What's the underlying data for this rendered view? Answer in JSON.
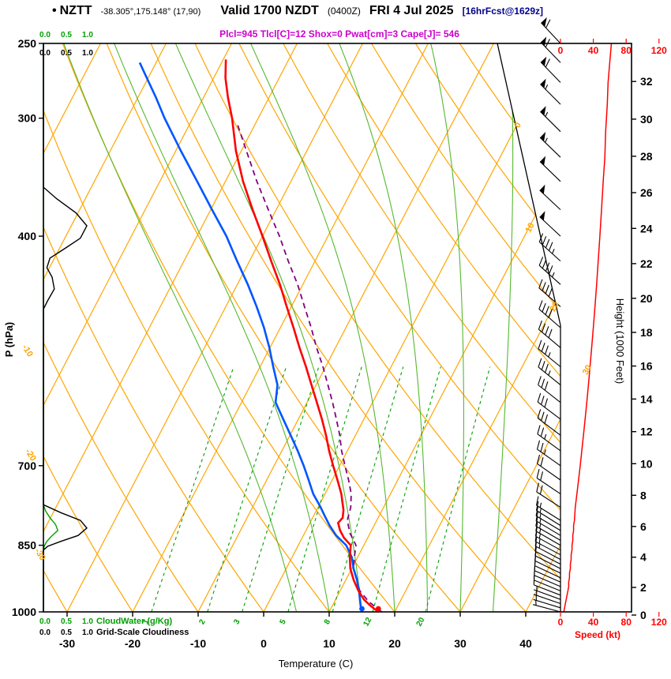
{
  "header": {
    "bullet": "•",
    "station": "NZTT",
    "coords": "-38.305°,175.148° (17,90)",
    "valid": "Valid 1700 NZDT",
    "valid_z": "(0400Z)",
    "date": "FRI 4 Jul 2025",
    "fcst_tag": "[16hrFcst@1629z]"
  },
  "params_line": "Plcl=945 Tlcl[C]=12 Shox=0 Pwat[cm]=3 Cape[J]= 546",
  "colors": {
    "grid_orange": "#FFA500",
    "moist_adiabat": "#55B82E",
    "mixing_ratio": "#00A000",
    "temperature": "#FF0000",
    "dewpoint": "#0055FF",
    "parcel": "#800080",
    "wind_barb": "#000000",
    "speed": "#FF0000",
    "cloudwater": "#00A000",
    "cloudiness": "#000000",
    "params_text": "#CC00CC",
    "fcst_tag_text": "#00008B"
  },
  "axes": {
    "pressure": {
      "title": "P (hPa)",
      "ticks": [
        250,
        300,
        400,
        700,
        850,
        1000
      ]
    },
    "temperature": {
      "title": "Temperature (C)",
      "ticks": [
        -30,
        -20,
        -10,
        0,
        10,
        20,
        30,
        40
      ]
    },
    "height": {
      "title": "Height (1000 Feet)",
      "ticks": [
        32,
        30,
        28,
        26,
        24,
        22,
        20,
        18,
        16,
        14,
        12,
        10,
        8,
        6,
        4,
        2,
        0
      ]
    },
    "speed": {
      "title": "Speed (kt)",
      "ticks": [
        0,
        40,
        80,
        120
      ]
    },
    "cloudwater_scale": {
      "title": "CloudWater (g/Kg)",
      "ticks": [
        "0.0",
        "0.5",
        "1.0"
      ]
    },
    "cloudiness_scale": {
      "title": "Grid-Scale Cloudiness",
      "ticks": [
        "0.0",
        "0.5",
        "1.0"
      ]
    }
  },
  "chart_data": {
    "type": "skewt_logp_sounding",
    "pressure_range": [
      250,
      1000
    ],
    "isotherm_step": 10,
    "isotherm_cut_labels": [
      [
        0,
        160
      ],
      [
        10,
        290
      ],
      [
        20,
        390
      ],
      [
        30,
        470
      ]
    ],
    "dry_adiabat_left_labels": [
      [
        -10,
        32,
        446
      ],
      [
        -20,
        36,
        578
      ],
      [
        -30,
        48,
        704
      ]
    ],
    "mixing_ratio_lines": [
      1,
      2,
      3,
      5,
      8,
      12,
      20
    ],
    "moist_adiabat_thetaw": [
      5,
      10,
      15,
      20,
      25,
      30,
      35
    ],
    "temperature_profile": [
      [
        1000,
        17.5
      ],
      [
        985,
        15.8
      ],
      [
        970,
        14.3
      ],
      [
        950,
        12.8
      ],
      [
        925,
        11.2
      ],
      [
        900,
        9.8
      ],
      [
        875,
        8.8
      ],
      [
        850,
        8.0
      ],
      [
        835,
        6.4
      ],
      [
        820,
        5.2
      ],
      [
        805,
        4.3
      ],
      [
        795,
        4.6
      ],
      [
        780,
        4.1
      ],
      [
        750,
        2.5
      ],
      [
        725,
        0.8
      ],
      [
        700,
        -1.0
      ],
      [
        675,
        -2.8
      ],
      [
        650,
        -4.5
      ],
      [
        625,
        -6.4
      ],
      [
        600,
        -8.5
      ],
      [
        575,
        -10.7
      ],
      [
        550,
        -13.0
      ],
      [
        525,
        -15.5
      ],
      [
        500,
        -18.0
      ],
      [
        475,
        -20.7
      ],
      [
        450,
        -23.5
      ],
      [
        425,
        -26.7
      ],
      [
        400,
        -30.0
      ],
      [
        375,
        -33.6
      ],
      [
        350,
        -37.3
      ],
      [
        325,
        -40.8
      ],
      [
        300,
        -44.0
      ],
      [
        285,
        -46.3
      ],
      [
        272,
        -48.2
      ],
      [
        260,
        -49.6
      ]
    ],
    "dewpoint_profile": [
      [
        1000,
        15.0
      ],
      [
        985,
        14.3
      ],
      [
        970,
        13.7
      ],
      [
        950,
        12.9
      ],
      [
        925,
        11.7
      ],
      [
        900,
        10.3
      ],
      [
        875,
        9.1
      ],
      [
        850,
        7.3
      ],
      [
        830,
        5.0
      ],
      [
        810,
        3.2
      ],
      [
        790,
        1.6
      ],
      [
        775,
        0.4
      ],
      [
        750,
        -1.8
      ],
      [
        725,
        -3.6
      ],
      [
        700,
        -5.5
      ],
      [
        675,
        -7.6
      ],
      [
        650,
        -9.9
      ],
      [
        625,
        -12.3
      ],
      [
        600,
        -14.8
      ],
      [
        575,
        -15.9
      ],
      [
        550,
        -18.0
      ],
      [
        525,
        -20.1
      ],
      [
        500,
        -22.5
      ],
      [
        475,
        -25.3
      ],
      [
        450,
        -28.4
      ],
      [
        425,
        -31.9
      ],
      [
        400,
        -35.5
      ],
      [
        375,
        -39.8
      ],
      [
        350,
        -44.3
      ],
      [
        325,
        -49.2
      ],
      [
        300,
        -54.3
      ],
      [
        285,
        -57.3
      ],
      [
        272,
        -60.2
      ],
      [
        262,
        -62.5
      ]
    ],
    "parcel_profile": [
      [
        1000,
        18.0
      ],
      [
        975,
        15.2
      ],
      [
        950,
        13.0
      ],
      [
        925,
        11.7
      ],
      [
        900,
        10.3
      ],
      [
        875,
        9.5
      ],
      [
        850,
        8.8
      ],
      [
        825,
        6.9
      ],
      [
        800,
        5.5
      ],
      [
        775,
        5.0
      ],
      [
        750,
        4.0
      ],
      [
        725,
        2.5
      ],
      [
        700,
        0.8
      ],
      [
        675,
        -0.9
      ],
      [
        650,
        -2.4
      ],
      [
        625,
        -4.2
      ],
      [
        600,
        -6.1
      ],
      [
        575,
        -8.2
      ],
      [
        550,
        -10.4
      ],
      [
        525,
        -12.9
      ],
      [
        500,
        -15.3
      ],
      [
        475,
        -18.0
      ],
      [
        450,
        -20.8
      ],
      [
        425,
        -24.1
      ],
      [
        400,
        -27.4
      ],
      [
        375,
        -31.2
      ],
      [
        350,
        -35.2
      ],
      [
        325,
        -39.2
      ],
      [
        305,
        -42.6
      ]
    ],
    "winds": [
      [
        1000,
        4,
        285
      ],
      [
        990,
        5,
        287
      ],
      [
        980,
        6,
        289
      ],
      [
        970,
        7,
        290
      ],
      [
        960,
        8,
        291
      ],
      [
        950,
        9,
        292
      ],
      [
        940,
        10,
        293
      ],
      [
        930,
        10,
        294
      ],
      [
        920,
        11,
        295
      ],
      [
        910,
        11,
        296
      ],
      [
        900,
        12,
        297
      ],
      [
        890,
        12,
        297
      ],
      [
        880,
        13,
        298
      ],
      [
        870,
        13,
        298
      ],
      [
        860,
        14,
        299
      ],
      [
        850,
        14,
        300
      ],
      [
        840,
        15,
        300
      ],
      [
        830,
        15,
        301
      ],
      [
        820,
        16,
        301
      ],
      [
        810,
        16,
        302
      ],
      [
        800,
        17,
        302
      ],
      [
        775,
        18,
        303
      ],
      [
        750,
        20,
        304
      ],
      [
        725,
        22,
        305
      ],
      [
        700,
        24,
        305
      ],
      [
        675,
        26,
        306
      ],
      [
        650,
        28,
        307
      ],
      [
        625,
        30,
        307
      ],
      [
        600,
        32,
        308
      ],
      [
        575,
        34,
        309
      ],
      [
        550,
        36,
        309
      ],
      [
        525,
        38,
        310
      ],
      [
        500,
        40,
        311
      ],
      [
        475,
        42,
        311
      ],
      [
        450,
        44,
        312
      ],
      [
        425,
        46,
        312
      ],
      [
        400,
        48,
        313
      ],
      [
        375,
        50,
        313
      ],
      [
        350,
        52,
        314
      ],
      [
        330,
        54,
        314
      ],
      [
        310,
        55,
        315
      ],
      [
        290,
        57,
        315
      ],
      [
        275,
        58,
        316
      ],
      [
        262,
        60,
        316
      ],
      [
        250,
        62,
        317
      ]
    ],
    "cloudiness_profile": [
      [
        250,
        0
      ],
      [
        355,
        0
      ],
      [
        365,
        0.3
      ],
      [
        378,
        0.75
      ],
      [
        390,
        1.0
      ],
      [
        402,
        0.85
      ],
      [
        412,
        0.5
      ],
      [
        422,
        0.15
      ],
      [
        432,
        0.08
      ],
      [
        442,
        0.2
      ],
      [
        455,
        0.25
      ],
      [
        468,
        0.1
      ],
      [
        478,
        0
      ],
      [
        770,
        0
      ],
      [
        785,
        0.4
      ],
      [
        800,
        0.85
      ],
      [
        815,
        1.0
      ],
      [
        830,
        0.8
      ],
      [
        842,
        0.4
      ],
      [
        852,
        0.1
      ],
      [
        860,
        0
      ],
      [
        1000,
        0
      ]
    ],
    "cloudwater_profile": [
      [
        250,
        0
      ],
      [
        770,
        0
      ],
      [
        782,
        0.05
      ],
      [
        795,
        0.15
      ],
      [
        808,
        0.28
      ],
      [
        820,
        0.33
      ],
      [
        832,
        0.18
      ],
      [
        843,
        0.07
      ],
      [
        852,
        0.02
      ],
      [
        860,
        0
      ],
      [
        1000,
        0
      ]
    ]
  }
}
